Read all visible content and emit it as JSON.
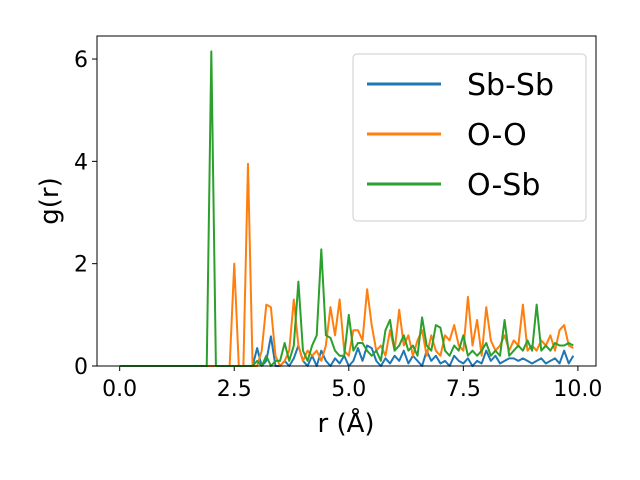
{
  "chart_data": {
    "type": "line",
    "xlabel": "r (Å)",
    "ylabel": "g(r)",
    "x": [
      0.0,
      0.1,
      0.2,
      0.3,
      0.4,
      0.5,
      0.6,
      0.7,
      0.8,
      0.9,
      1.0,
      1.1,
      1.2,
      1.3,
      1.4,
      1.5,
      1.6,
      1.7,
      1.8,
      1.9,
      2.0,
      2.1,
      2.2,
      2.3,
      2.4,
      2.5,
      2.6,
      2.7,
      2.8,
      2.9,
      3.0,
      3.1,
      3.2,
      3.3,
      3.4,
      3.5,
      3.6,
      3.7,
      3.8,
      3.9,
      4.0,
      4.1,
      4.2,
      4.3,
      4.4,
      4.5,
      4.6,
      4.7,
      4.8,
      4.9,
      5.0,
      5.1,
      5.2,
      5.3,
      5.4,
      5.5,
      5.6,
      5.7,
      5.8,
      5.9,
      6.0,
      6.1,
      6.2,
      6.3,
      6.4,
      6.5,
      6.6,
      6.7,
      6.8,
      6.9,
      7.0,
      7.1,
      7.2,
      7.3,
      7.4,
      7.5,
      7.6,
      7.7,
      7.8,
      7.9,
      8.0,
      8.1,
      8.2,
      8.3,
      8.4,
      8.5,
      8.6,
      8.7,
      8.8,
      8.9,
      9.0,
      9.1,
      9.2,
      9.3,
      9.4,
      9.5,
      9.6,
      9.7,
      9.8,
      9.9
    ],
    "series": [
      {
        "name": "Sb-Sb",
        "color": "#1f77b4",
        "values": [
          0,
          0,
          0,
          0,
          0,
          0,
          0,
          0,
          0,
          0,
          0,
          0,
          0,
          0,
          0,
          0,
          0,
          0,
          0,
          0,
          0,
          0,
          0,
          0,
          0,
          0,
          0,
          0,
          0,
          0,
          0.35,
          0,
          0.1,
          0.58,
          0,
          0,
          0.1,
          0,
          0.15,
          0.4,
          0.1,
          0,
          0.2,
          0,
          0.3,
          0.1,
          0,
          0.15,
          0.05,
          0.2,
          0,
          0.1,
          0.35,
          0.1,
          0.4,
          0.35,
          0.1,
          0,
          0.15,
          0.05,
          0.2,
          0.1,
          0.3,
          0.05,
          0.2,
          0.1,
          0,
          0.3,
          0.1,
          0.2,
          0.05,
          0.1,
          0,
          0.2,
          0.1,
          0.05,
          0.15,
          0,
          0.1,
          0.05,
          0.3,
          0.1,
          0.2,
          0.05,
          0.1,
          0.15,
          0.15,
          0.1,
          0.15,
          0.1,
          0.05,
          0.1,
          0.15,
          0.05,
          0.1,
          0.15,
          0.05,
          0.3,
          0.05,
          0.2
        ]
      },
      {
        "name": "O-O",
        "color": "#ff7f0e",
        "values": [
          0,
          0,
          0,
          0,
          0,
          0,
          0,
          0,
          0,
          0,
          0,
          0,
          0,
          0,
          0,
          0,
          0,
          0,
          0,
          0,
          0,
          0,
          0,
          0,
          0,
          2.0,
          0,
          0,
          3.95,
          0,
          0,
          0.3,
          1.2,
          1.15,
          0.2,
          0,
          0.1,
          0.3,
          1.3,
          0.4,
          0.1,
          0.3,
          0.2,
          0.3,
          0.1,
          0.4,
          1.15,
          0.6,
          1.3,
          0.3,
          0.2,
          0.7,
          0.7,
          0.5,
          1.5,
          0.8,
          0.3,
          0.4,
          0.2,
          0.7,
          0.3,
          1.1,
          0.4,
          0.6,
          0.2,
          0.5,
          0.7,
          0.2,
          0.6,
          0.3,
          0.2,
          0.6,
          0.5,
          0.8,
          0.4,
          0.3,
          1.35,
          0.4,
          0.9,
          0.2,
          1.15,
          0.5,
          0.3,
          0.4,
          0.6,
          0.3,
          0.5,
          0.4,
          1.2,
          0.3,
          0.4,
          0.3,
          0.5,
          0.4,
          0.6,
          0.3,
          0.7,
          0.8,
          0.4,
          0.35
        ]
      },
      {
        "name": "O-Sb",
        "color": "#2ca02c",
        "values": [
          0,
          0,
          0,
          0,
          0,
          0,
          0,
          0,
          0,
          0,
          0,
          0,
          0,
          0,
          0,
          0,
          0,
          0,
          0,
          0,
          6.15,
          0,
          0,
          0,
          0,
          0,
          0,
          0,
          0,
          0,
          0.1,
          0,
          0.2,
          0,
          0.1,
          0.1,
          0.45,
          0.1,
          0.4,
          1.65,
          0.3,
          0.1,
          0.4,
          0.6,
          2.28,
          0.6,
          0.55,
          0.3,
          0.2,
          0.2,
          1.0,
          0.3,
          0.45,
          0.45,
          0.3,
          0.2,
          0.3,
          0.1,
          0.7,
          0.9,
          0.3,
          0.4,
          0.6,
          0.3,
          0.4,
          0.2,
          0.95,
          0.4,
          0.3,
          0.8,
          0.75,
          0.3,
          0.2,
          0.4,
          0.3,
          0.6,
          0.2,
          0.3,
          0.2,
          0.3,
          0.45,
          0.2,
          0.3,
          0.2,
          0.9,
          0.2,
          0.3,
          0.4,
          0.3,
          0.5,
          0.3,
          1.2,
          0.3,
          0.4,
          0.3,
          0.45,
          0.4,
          0.4,
          0.45,
          0.4
        ]
      }
    ],
    "xlim": [
      -0.495,
      10.395
    ],
    "ylim": [
      0,
      6.45
    ],
    "xticks": [
      {
        "value": 0,
        "label": "0.0"
      },
      {
        "value": 2.5,
        "label": "2.5"
      },
      {
        "value": 5,
        "label": "5.0"
      },
      {
        "value": 7.5,
        "label": "7.5"
      },
      {
        "value": 10,
        "label": "10.0"
      }
    ],
    "yticks": [
      0,
      2,
      4,
      6
    ],
    "grid": false,
    "legend": "upper right"
  }
}
